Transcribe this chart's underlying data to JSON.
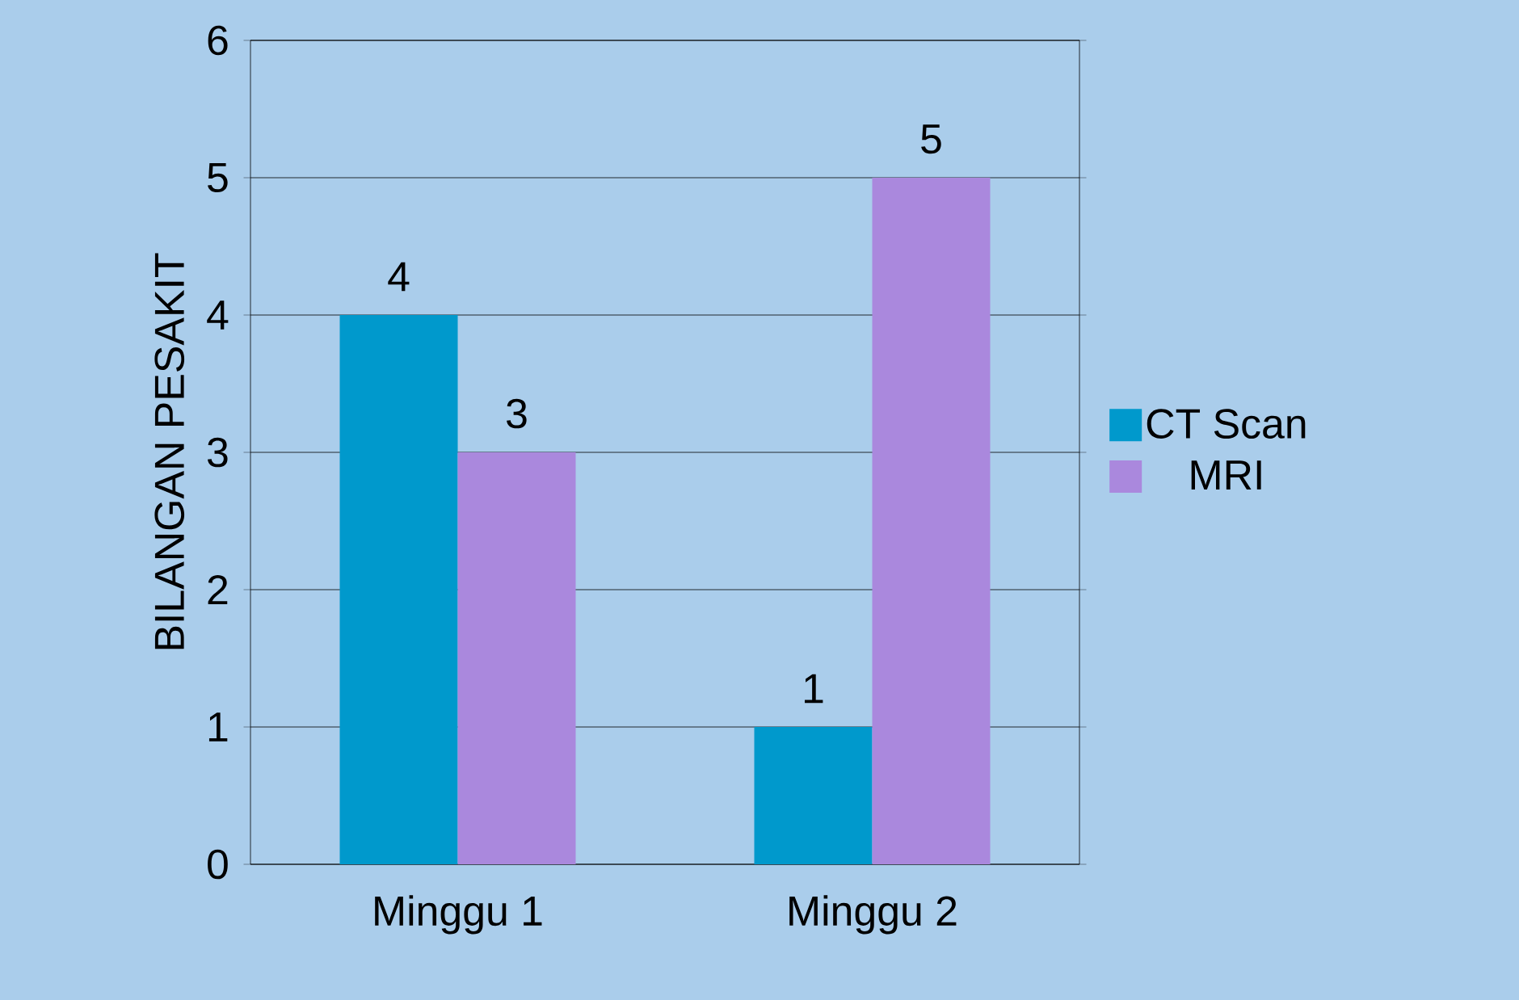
{
  "chart_data": {
    "type": "bar",
    "ylabel": "BILANGAN PESAKIT",
    "categories": [
      "Minggu 1",
      "Minggu 2"
    ],
    "series": [
      {
        "name": "CT Scan",
        "color": "#0099cc",
        "values": [
          4,
          1
        ]
      },
      {
        "name": "MRI",
        "color": "#aa88dd",
        "values": [
          3,
          5
        ]
      }
    ],
    "ylim": [
      0,
      6
    ],
    "yticks": [
      0,
      1,
      2,
      3,
      4,
      5,
      6
    ],
    "grid": "y",
    "legend": "right",
    "data_labels": true
  }
}
